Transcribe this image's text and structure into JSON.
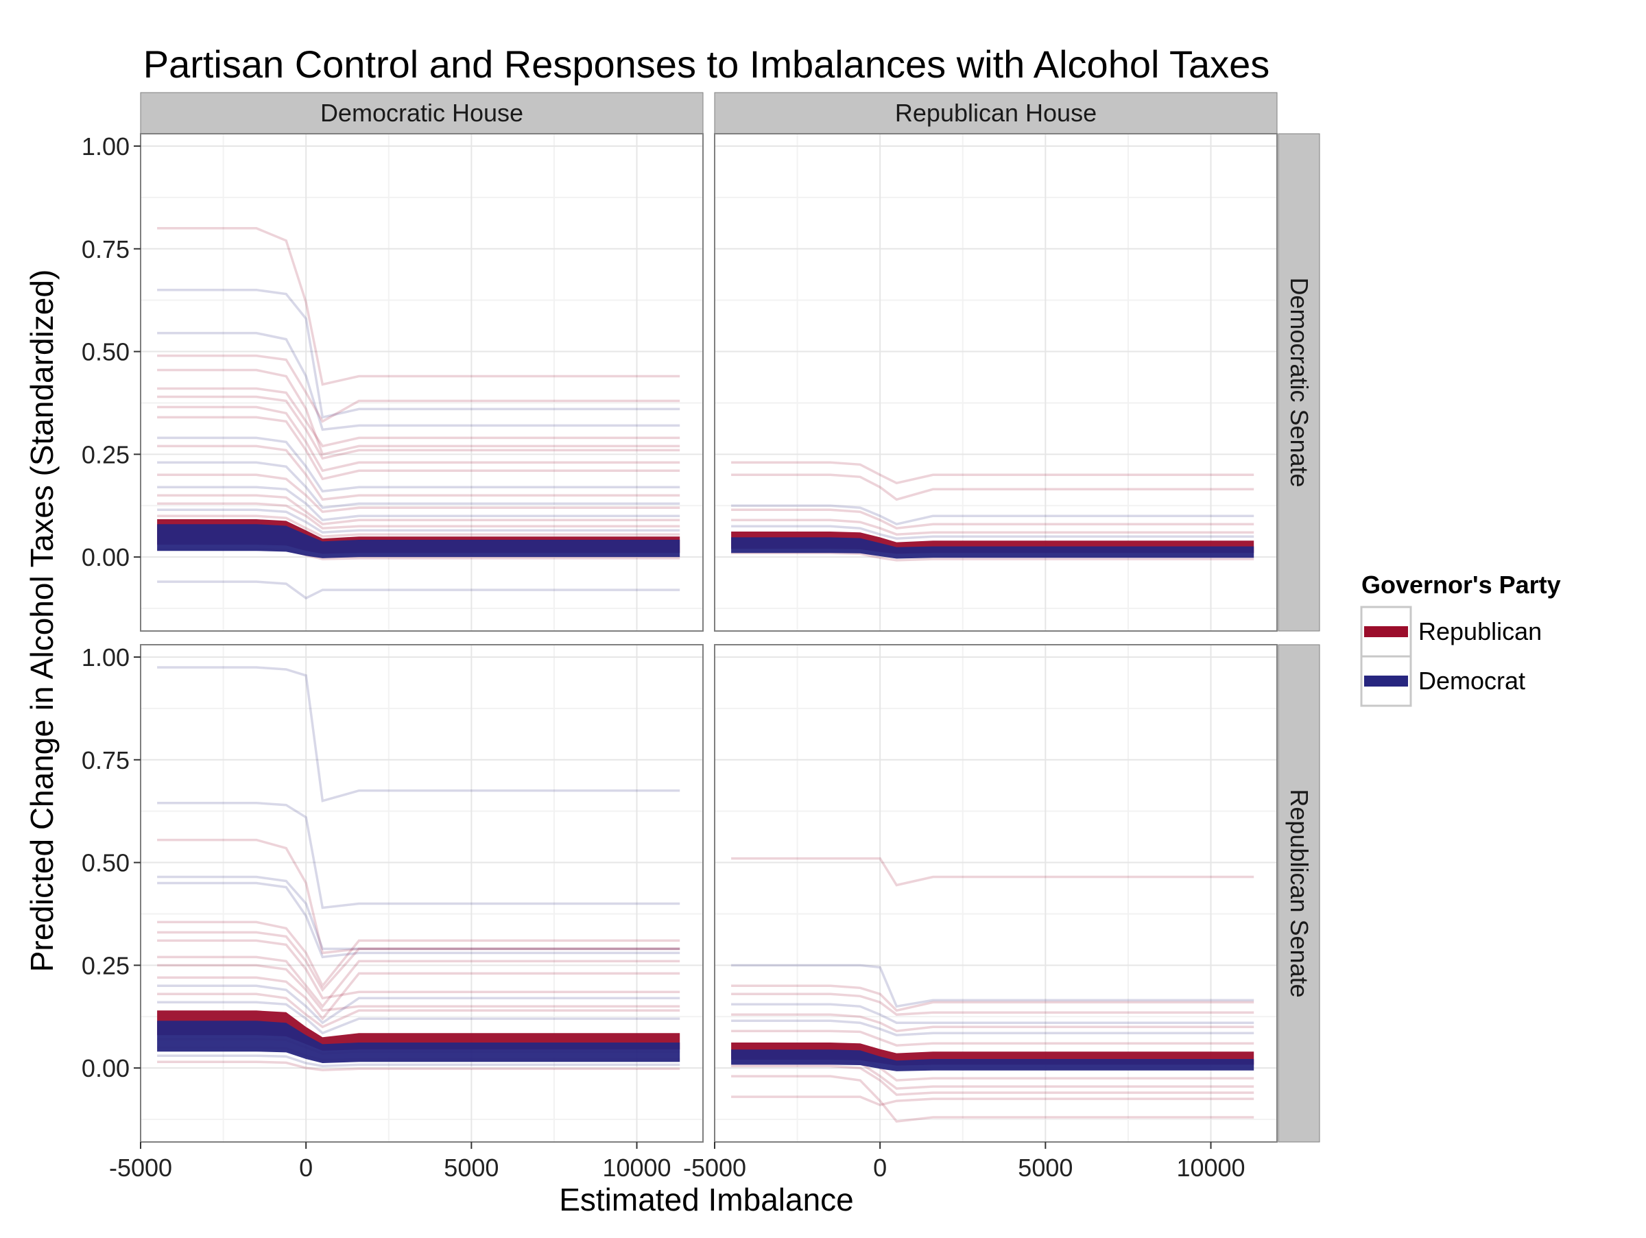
{
  "chart_data": {
    "type": "line",
    "title": "Partisan Control and Responses to Imbalances with Alcohol Taxes",
    "xlabel": "Estimated Imbalance",
    "ylabel": "Predicted Change in Alcohol Taxes (Standardized)",
    "xlim": [
      -5000,
      12000
    ],
    "ylim": [
      -0.18,
      1.03
    ],
    "x_ticks": [
      -5000,
      0,
      5000,
      10000
    ],
    "x_tick_labels": [
      "-5000",
      "0",
      "5000",
      "10000"
    ],
    "y_ticks": [
      0,
      0.25,
      0.5,
      0.75,
      1
    ],
    "y_tick_labels": [
      "0.00",
      "0.25",
      "0.50",
      "0.75",
      "1.00"
    ],
    "grid": true,
    "legend_placement": "right",
    "legend": {
      "title": "Governor's Party",
      "entries": [
        {
          "label": "Republican",
          "color": "#9b0d2b"
        },
        {
          "label": "Democrat",
          "color": "#27267f"
        }
      ]
    },
    "colors": {
      "Republican": "#9b0d2b",
      "Democrat": "#27267f",
      "strip": "#c4c4c4",
      "grid": "#e6e6e6"
    },
    "x_points": [
      -4500,
      -1500,
      -600,
      0,
      500,
      1600,
      11300
    ],
    "facet_cols": [
      "Democratic House",
      "Republican House"
    ],
    "facet_rows": [
      "Democratic Senate",
      "Republican Senate"
    ],
    "panels": [
      {
        "col": "Democratic House",
        "row": "Democratic Senate",
        "main_bands": [
          {
            "party": "Republican",
            "lower": [
              0.03,
              0.03,
              0.028,
              0.015,
              0.008,
              0.01,
              0.01
            ],
            "upper": [
              0.092,
              0.092,
              0.088,
              0.065,
              0.045,
              0.05,
              0.05
            ]
          },
          {
            "party": "Democrat",
            "lower": [
              0.015,
              0.015,
              0.013,
              0.003,
              -0.003,
              0.0,
              0.0
            ],
            "upper": [
              0.08,
              0.08,
              0.076,
              0.055,
              0.038,
              0.042,
              0.042
            ]
          }
        ],
        "sim_lines": [
          {
            "party": "Republican",
            "values": [
              0.8,
              0.8,
              0.77,
              0.62,
              0.42,
              0.44,
              0.44
            ]
          },
          {
            "party": "Democrat",
            "values": [
              0.65,
              0.65,
              0.64,
              0.58,
              0.34,
              0.36,
              0.36
            ]
          },
          {
            "party": "Democrat",
            "values": [
              0.545,
              0.545,
              0.53,
              0.44,
              0.31,
              0.32,
              0.32
            ]
          },
          {
            "party": "Republican",
            "values": [
              0.49,
              0.49,
              0.48,
              0.4,
              0.33,
              0.38,
              0.38
            ]
          },
          {
            "party": "Republican",
            "values": [
              0.455,
              0.455,
              0.44,
              0.36,
              0.25,
              0.27,
              0.27
            ]
          },
          {
            "party": "Republican",
            "values": [
              0.41,
              0.41,
              0.4,
              0.33,
              0.27,
              0.29,
              0.29
            ]
          },
          {
            "party": "Republican",
            "values": [
              0.39,
              0.39,
              0.38,
              0.31,
              0.24,
              0.26,
              0.26
            ]
          },
          {
            "party": "Republican",
            "values": [
              0.365,
              0.365,
              0.35,
              0.28,
              0.21,
              0.23,
              0.23
            ]
          },
          {
            "party": "Republican",
            "values": [
              0.34,
              0.34,
              0.33,
              0.26,
              0.19,
              0.21,
              0.21
            ]
          },
          {
            "party": "Democrat",
            "values": [
              0.29,
              0.29,
              0.28,
              0.22,
              0.16,
              0.17,
              0.17
            ]
          },
          {
            "party": "Republican",
            "values": [
              0.27,
              0.27,
              0.26,
              0.2,
              0.14,
              0.15,
              0.15
            ]
          },
          {
            "party": "Democrat",
            "values": [
              0.23,
              0.23,
              0.22,
              0.17,
              0.12,
              0.13,
              0.13
            ]
          },
          {
            "party": "Republican",
            "values": [
              0.2,
              0.2,
              0.19,
              0.15,
              0.11,
              0.12,
              0.12
            ]
          },
          {
            "party": "Democrat",
            "values": [
              0.17,
              0.17,
              0.165,
              0.13,
              0.09,
              0.1,
              0.1
            ]
          },
          {
            "party": "Republican",
            "values": [
              0.15,
              0.15,
              0.145,
              0.11,
              0.08,
              0.09,
              0.09
            ]
          },
          {
            "party": "Republican",
            "values": [
              0.13,
              0.13,
              0.125,
              0.1,
              0.07,
              0.075,
              0.075
            ]
          },
          {
            "party": "Democrat",
            "values": [
              0.115,
              0.115,
              0.11,
              0.085,
              0.06,
              0.065,
              0.065
            ]
          },
          {
            "party": "Republican",
            "values": [
              0.1,
              0.1,
              0.095,
              0.07,
              0.05,
              0.055,
              0.055
            ]
          },
          {
            "party": "Democrat",
            "values": [
              0.05,
              0.05,
              0.048,
              0.03,
              0.02,
              0.022,
              0.022
            ]
          },
          {
            "party": "Republican",
            "values": [
              0.02,
              0.02,
              0.018,
              0.005,
              -0.005,
              -0.003,
              -0.003
            ]
          },
          {
            "party": "Democrat",
            "values": [
              -0.06,
              -0.06,
              -0.065,
              -0.1,
              -0.08,
              -0.08,
              -0.08
            ]
          }
        ]
      },
      {
        "col": "Republican House",
        "row": "Democratic Senate",
        "main_bands": [
          {
            "party": "Republican",
            "lower": [
              0.02,
              0.02,
              0.019,
              0.012,
              0.008,
              0.01,
              0.01
            ],
            "upper": [
              0.062,
              0.062,
              0.06,
              0.048,
              0.036,
              0.04,
              0.04
            ]
          },
          {
            "party": "Democrat",
            "lower": [
              0.01,
              0.01,
              0.009,
              0.002,
              -0.004,
              -0.002,
              -0.002
            ],
            "upper": [
              0.048,
              0.048,
              0.046,
              0.034,
              0.024,
              0.026,
              0.026
            ]
          }
        ],
        "sim_lines": [
          {
            "party": "Republican",
            "values": [
              0.23,
              0.23,
              0.225,
              0.2,
              0.18,
              0.2,
              0.2
            ]
          },
          {
            "party": "Republican",
            "values": [
              0.2,
              0.2,
              0.195,
              0.17,
              0.14,
              0.165,
              0.165
            ]
          },
          {
            "party": "Democrat",
            "values": [
              0.125,
              0.125,
              0.12,
              0.1,
              0.08,
              0.1,
              0.1
            ]
          },
          {
            "party": "Republican",
            "values": [
              0.115,
              0.115,
              0.11,
              0.09,
              0.07,
              0.08,
              0.08
            ]
          },
          {
            "party": "Republican",
            "values": [
              0.09,
              0.09,
              0.085,
              0.07,
              0.055,
              0.06,
              0.06
            ]
          },
          {
            "party": "Democrat",
            "values": [
              0.075,
              0.075,
              0.07,
              0.055,
              0.045,
              0.05,
              0.05
            ]
          },
          {
            "party": "Republican",
            "values": [
              0.01,
              0.01,
              0.008,
              -0.002,
              -0.008,
              -0.005,
              -0.005
            ]
          }
        ]
      },
      {
        "col": "Democratic House",
        "row": "Republican Senate",
        "main_bands": [
          {
            "party": "Republican",
            "lower": [
              0.08,
              0.08,
              0.077,
              0.058,
              0.042,
              0.045,
              0.045
            ],
            "upper": [
              0.14,
              0.14,
              0.136,
              0.1,
              0.075,
              0.085,
              0.085
            ]
          },
          {
            "party": "Democrat",
            "lower": [
              0.04,
              0.04,
              0.038,
              0.022,
              0.012,
              0.015,
              0.015
            ],
            "upper": [
              0.115,
              0.115,
              0.11,
              0.08,
              0.058,
              0.062,
              0.062
            ]
          }
        ],
        "sim_lines": [
          {
            "party": "Democrat",
            "values": [
              0.975,
              0.975,
              0.97,
              0.955,
              0.65,
              0.675,
              0.675
            ]
          },
          {
            "party": "Democrat",
            "values": [
              0.645,
              0.645,
              0.64,
              0.61,
              0.39,
              0.4,
              0.4
            ]
          },
          {
            "party": "Republican",
            "values": [
              0.555,
              0.555,
              0.535,
              0.45,
              0.28,
              0.29,
              0.29
            ]
          },
          {
            "party": "Democrat",
            "values": [
              0.465,
              0.465,
              0.455,
              0.4,
              0.29,
              0.29,
              0.29
            ]
          },
          {
            "party": "Democrat",
            "values": [
              0.45,
              0.45,
              0.44,
              0.37,
              0.27,
              0.28,
              0.28
            ]
          },
          {
            "party": "Republican",
            "values": [
              0.355,
              0.355,
              0.34,
              0.28,
              0.2,
              0.31,
              0.31
            ]
          },
          {
            "party": "Republican",
            "values": [
              0.33,
              0.33,
              0.32,
              0.26,
              0.19,
              0.29,
              0.29
            ]
          },
          {
            "party": "Republican",
            "values": [
              0.31,
              0.31,
              0.3,
              0.24,
              0.17,
              0.185,
              0.185
            ]
          },
          {
            "party": "Republican",
            "values": [
              0.27,
              0.27,
              0.26,
              0.2,
              0.15,
              0.26,
              0.26
            ]
          },
          {
            "party": "Republican",
            "values": [
              0.25,
              0.25,
              0.24,
              0.19,
              0.14,
              0.15,
              0.15
            ]
          },
          {
            "party": "Republican",
            "values": [
              0.22,
              0.22,
              0.21,
              0.17,
              0.12,
              0.23,
              0.23
            ]
          },
          {
            "party": "Democrat",
            "values": [
              0.2,
              0.2,
              0.19,
              0.15,
              0.11,
              0.17,
              0.17
            ]
          },
          {
            "party": "Republican",
            "values": [
              0.18,
              0.18,
              0.17,
              0.13,
              0.1,
              0.14,
              0.14
            ]
          },
          {
            "party": "Democrat",
            "values": [
              0.16,
              0.16,
              0.155,
              0.12,
              0.085,
              0.12,
              0.12
            ]
          },
          {
            "party": "Republican",
            "values": [
              0.07,
              0.07,
              0.068,
              0.05,
              0.035,
              0.04,
              0.04
            ]
          },
          {
            "party": "Republican",
            "values": [
              0.05,
              0.05,
              0.048,
              0.03,
              0.02,
              0.022,
              0.022
            ]
          },
          {
            "party": "Democrat",
            "values": [
              0.03,
              0.03,
              0.028,
              0.012,
              0.005,
              0.008,
              0.008
            ]
          },
          {
            "party": "Republican",
            "values": [
              0.015,
              0.015,
              0.013,
              0.0,
              -0.005,
              -0.002,
              -0.002
            ]
          }
        ]
      },
      {
        "col": "Republican House",
        "row": "Republican Senate",
        "main_bands": [
          {
            "party": "Republican",
            "lower": [
              0.02,
              0.02,
              0.019,
              0.012,
              0.006,
              0.008,
              0.008
            ],
            "upper": [
              0.062,
              0.062,
              0.06,
              0.046,
              0.036,
              0.04,
              0.04
            ]
          },
          {
            "party": "Democrat",
            "lower": [
              0.008,
              0.008,
              0.007,
              -0.002,
              -0.008,
              -0.006,
              -0.006
            ],
            "upper": [
              0.045,
              0.045,
              0.043,
              0.028,
              0.018,
              0.022,
              0.022
            ]
          }
        ],
        "sim_lines": [
          {
            "party": "Republican",
            "values": [
              0.51,
              0.51,
              0.51,
              0.51,
              0.445,
              0.465,
              0.465
            ]
          },
          {
            "party": "Democrat",
            "values": [
              0.25,
              0.25,
              0.25,
              0.245,
              0.15,
              0.165,
              0.165
            ]
          },
          {
            "party": "Republican",
            "values": [
              0.2,
              0.2,
              0.195,
              0.18,
              0.14,
              0.16,
              0.16
            ]
          },
          {
            "party": "Republican",
            "values": [
              0.18,
              0.18,
              0.175,
              0.16,
              0.13,
              0.135,
              0.135
            ]
          },
          {
            "party": "Democrat",
            "values": [
              0.155,
              0.155,
              0.15,
              0.13,
              0.11,
              0.11,
              0.11
            ]
          },
          {
            "party": "Republican",
            "values": [
              0.13,
              0.13,
              0.125,
              0.11,
              0.09,
              0.1,
              0.1
            ]
          },
          {
            "party": "Democrat",
            "values": [
              0.115,
              0.115,
              0.11,
              0.095,
              0.08,
              0.085,
              0.085
            ]
          },
          {
            "party": "Republican",
            "values": [
              0.09,
              0.09,
              0.088,
              0.07,
              0.055,
              0.06,
              0.06
            ]
          },
          {
            "party": "Republican",
            "values": [
              0.03,
              0.03,
              0.028,
              0.0,
              -0.03,
              -0.025,
              -0.025
            ]
          },
          {
            "party": "Republican",
            "values": [
              0.015,
              0.015,
              0.012,
              -0.02,
              -0.05,
              -0.045,
              -0.045
            ]
          },
          {
            "party": "Republican",
            "values": [
              0.005,
              0.005,
              0.0,
              -0.03,
              -0.065,
              -0.06,
              -0.06
            ]
          },
          {
            "party": "Republican",
            "values": [
              -0.07,
              -0.07,
              -0.07,
              -0.09,
              -0.08,
              -0.075,
              -0.075
            ]
          },
          {
            "party": "Republican",
            "values": [
              -0.02,
              -0.02,
              -0.03,
              -0.08,
              -0.13,
              -0.12,
              -0.12
            ]
          }
        ]
      }
    ]
  }
}
